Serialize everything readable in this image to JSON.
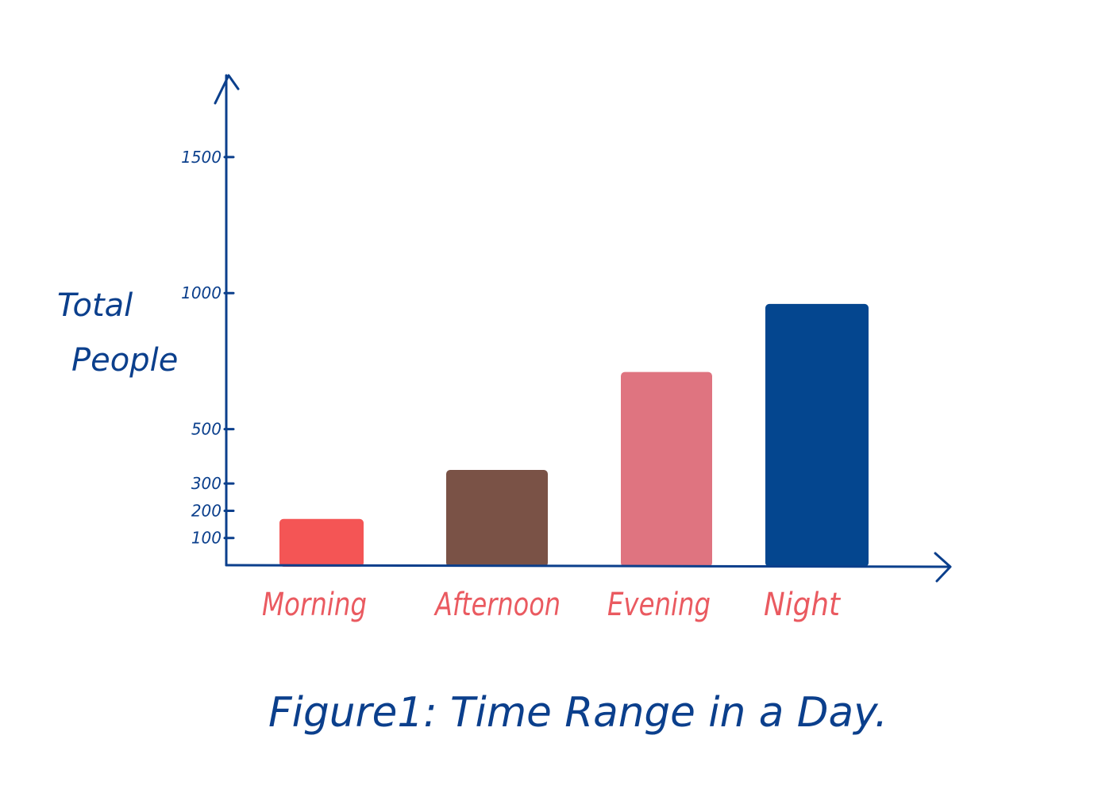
{
  "chart_data": {
    "type": "bar",
    "title": "",
    "caption": "Figure1: Time Range in a Day.",
    "xlabel": "",
    "ylabel": [
      "Total",
      "People"
    ],
    "categories": [
      "Morning",
      "Afternoon",
      "Evening",
      "Night"
    ],
    "values": [
      170,
      350,
      710,
      960
    ],
    "colors": [
      "#f45555",
      "#7a5246",
      "#df7480",
      "#04468f"
    ],
    "y_ticks": [
      {
        "value": 100,
        "label": "100"
      },
      {
        "value": 200,
        "label": "200"
      },
      {
        "value": 300,
        "label": "300"
      },
      {
        "value": 500,
        "label": "500"
      },
      {
        "value": 1000,
        "label": "1000"
      },
      {
        "value": 1500,
        "label": "1500"
      }
    ],
    "ylim": [
      0,
      1800
    ],
    "grid": false,
    "legend": "none",
    "axis_color": "#0b3f8c",
    "label_color": "#ea5a60"
  }
}
